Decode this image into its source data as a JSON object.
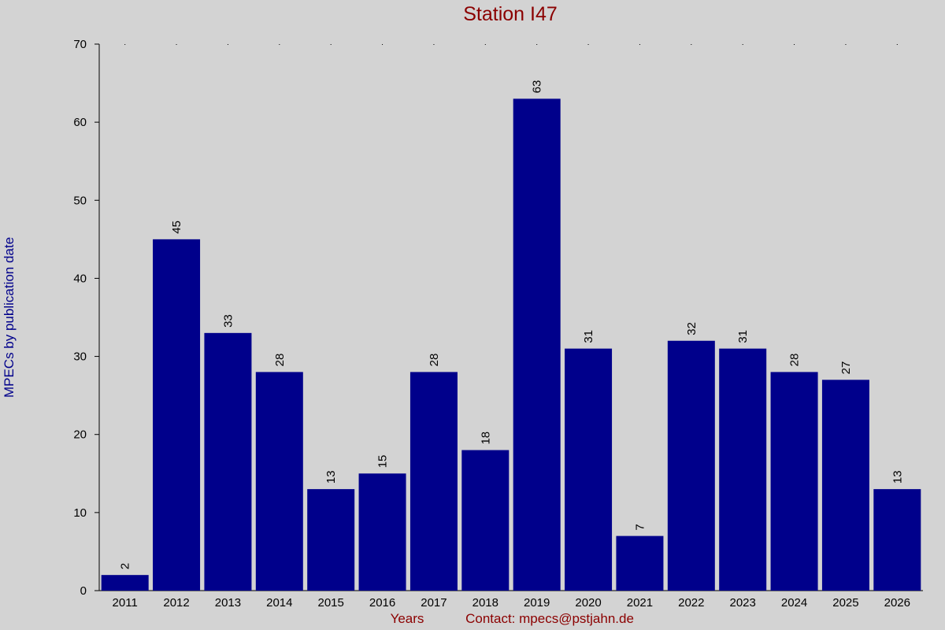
{
  "chart_data": {
    "type": "bar",
    "title": "Station I47",
    "x_label": "Years",
    "y_label": "MPECs by publication date",
    "footer": "Contact: mpecs@pstjahn.de",
    "categories": [
      "2011",
      "2012",
      "2013",
      "2014",
      "2015",
      "2016",
      "2017",
      "2018",
      "2019",
      "2020",
      "2021",
      "2022",
      "2023",
      "2024",
      "2025",
      "2026"
    ],
    "values": [
      2,
      45,
      33,
      28,
      13,
      15,
      28,
      18,
      63,
      31,
      7,
      32,
      31,
      28,
      27,
      13
    ],
    "color": "#00008b",
    "ylim": [
      0,
      70
    ],
    "yticks": [
      0,
      10,
      20,
      30,
      40,
      50,
      60,
      70
    ],
    "grid": false
  }
}
